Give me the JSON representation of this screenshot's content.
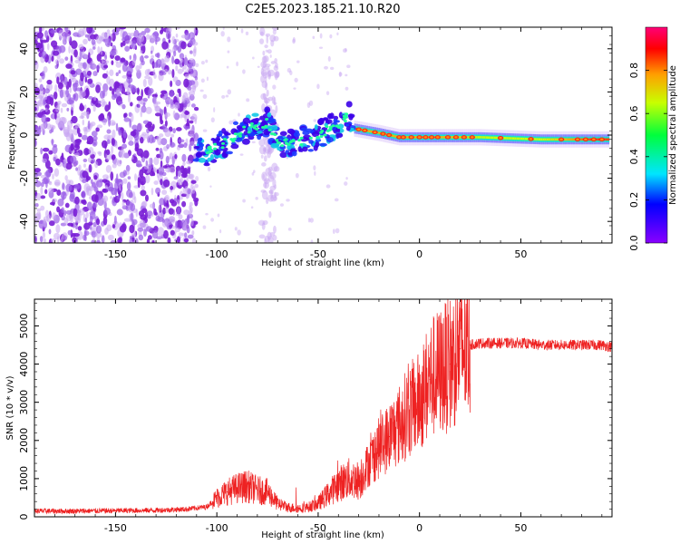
{
  "title": "C2E5.2023.185.21.10.R20",
  "colors": {
    "snr_line": "#ee2222",
    "frame": "#000000",
    "scatter_low": "#7a1fd6",
    "scatter_lowest": "#c8a6f2"
  },
  "chart_data": [
    {
      "type": "heatmap",
      "name": "spectrogram",
      "title": "C2E5.2023.185.21.10.R20",
      "xlabel": "Height of straight line (km)",
      "ylabel": "Frequency (Hz)",
      "xlim": [
        -190,
        95
      ],
      "ylim": [
        -50,
        50
      ],
      "xticks": [
        -150,
        -100,
        -50,
        0,
        50
      ],
      "yticks": [
        -40,
        -20,
        0,
        20,
        40
      ],
      "xtick_labels": [
        "-150",
        "-100",
        "-50",
        "0",
        "50"
      ],
      "ytick_labels": [
        "-40",
        "-20",
        "0",
        "20",
        "40"
      ],
      "colorbar": {
        "label": "Normalized spectral amplitude",
        "range": [
          0,
          1
        ],
        "ticks": [
          0.0,
          0.2,
          0.4,
          0.6,
          0.8
        ],
        "tick_labels": [
          "0.0",
          "0.2",
          "0.4",
          "0.6",
          "0.8"
        ]
      },
      "regions": [
        {
          "name": "noise",
          "x_range": [
            -190,
            -110
          ],
          "y_range": [
            -50,
            50
          ],
          "amplitude": 0.15
        },
        {
          "name": "noise-band",
          "x_range": [
            -78,
            -70
          ],
          "y_range": [
            -50,
            50
          ],
          "amplitude": 0.08
        }
      ],
      "signal_track": [
        {
          "x": -115,
          "y": -5,
          "amplitude": 0.15
        },
        {
          "x": -105,
          "y": -8,
          "amplitude": 0.3
        },
        {
          "x": -95,
          "y": -3,
          "amplitude": 0.35
        },
        {
          "x": -85,
          "y": 3,
          "amplitude": 0.35
        },
        {
          "x": -75,
          "y": 6,
          "amplitude": 0.35
        },
        {
          "x": -70,
          "y": -4,
          "amplitude": 0.3
        },
        {
          "x": -60,
          "y": -3,
          "amplitude": 0.35
        },
        {
          "x": -50,
          "y": 0,
          "amplitude": 0.4
        },
        {
          "x": -40,
          "y": 5,
          "amplitude": 0.4
        },
        {
          "x": -35,
          "y": 9,
          "amplitude": 0.4
        },
        {
          "x": -32,
          "y": 3,
          "amplitude": 0.85
        },
        {
          "x": -20,
          "y": 1,
          "amplitude": 0.85
        },
        {
          "x": -10,
          "y": -1,
          "amplitude": 0.85
        },
        {
          "x": 0,
          "y": -1,
          "amplitude": 0.85
        },
        {
          "x": 10,
          "y": -1,
          "amplitude": 0.85
        },
        {
          "x": 30,
          "y": -1,
          "amplitude": 0.75
        },
        {
          "x": 60,
          "y": -2,
          "amplitude": 0.75
        },
        {
          "x": 85,
          "y": -2,
          "amplitude": 0.95
        }
      ]
    },
    {
      "type": "line",
      "name": "snr",
      "xlabel": "Height of straight line (km)",
      "ylabel": "SNR (10 * v/v)",
      "xlim": [
        -190,
        95
      ],
      "ylim": [
        0,
        5700
      ],
      "xticks": [
        -150,
        -100,
        -50,
        0,
        50
      ],
      "yticks": [
        0,
        1000,
        2000,
        3000,
        4000,
        5000
      ],
      "xtick_labels": [
        "-150",
        "-100",
        "-50",
        "0",
        "50"
      ],
      "ytick_labels": [
        "0",
        "1000",
        "2000",
        "3000",
        "4000",
        "5000"
      ],
      "series": [
        {
          "name": "SNR",
          "x": [
            -190,
            -170,
            -150,
            -130,
            -115,
            -105,
            -100,
            -95,
            -90,
            -85,
            -80,
            -75,
            -70,
            -65,
            -60,
            -55,
            -50,
            -45,
            -40,
            -35,
            -30,
            -25,
            -20,
            -15,
            -10,
            -5,
            0,
            5,
            10,
            15,
            20,
            25,
            30,
            40,
            50,
            60,
            70,
            80,
            90,
            95
          ],
          "values": [
            150,
            150,
            160,
            170,
            200,
            260,
            500,
            650,
            750,
            800,
            700,
            650,
            350,
            250,
            220,
            250,
            350,
            600,
            850,
            1000,
            950,
            1400,
            1800,
            2100,
            2400,
            2800,
            3000,
            3600,
            3800,
            4000,
            4400,
            4500,
            4550,
            4550,
            4550,
            4500,
            4500,
            4500,
            4500,
            4450
          ]
        }
      ]
    }
  ]
}
